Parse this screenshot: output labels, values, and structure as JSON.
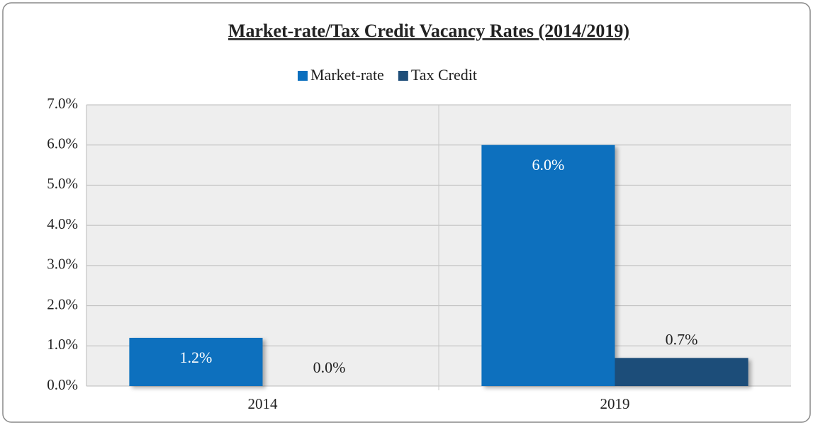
{
  "chart_data": {
    "type": "bar",
    "title": "Market-rate/Tax Credit Vacancy Rates (2014/2019)",
    "categories": [
      "2014",
      "2019"
    ],
    "series": [
      {
        "name": "Market-rate",
        "color": "#0b6fbe",
        "values": [
          1.2,
          6.0
        ],
        "value_labels": [
          "1.2%",
          "6.0%"
        ]
      },
      {
        "name": "Tax Credit",
        "color": "#1f4e79",
        "values": [
          0.0,
          0.7
        ],
        "value_labels": [
          "0.0%",
          "0.7%"
        ]
      }
    ],
    "ylim": [
      0,
      7
    ],
    "yticks": [
      {
        "value": 0,
        "label": "0.0%"
      },
      {
        "value": 1,
        "label": "1.0%"
      },
      {
        "value": 2,
        "label": "2.0%"
      },
      {
        "value": 3,
        "label": "3.0%"
      },
      {
        "value": 4,
        "label": "4.0%"
      },
      {
        "value": 5,
        "label": "5.0%"
      },
      {
        "value": 6,
        "label": "6.0%"
      },
      {
        "value": 7,
        "label": "7.0%"
      }
    ],
    "grid": true,
    "legend": "top"
  }
}
